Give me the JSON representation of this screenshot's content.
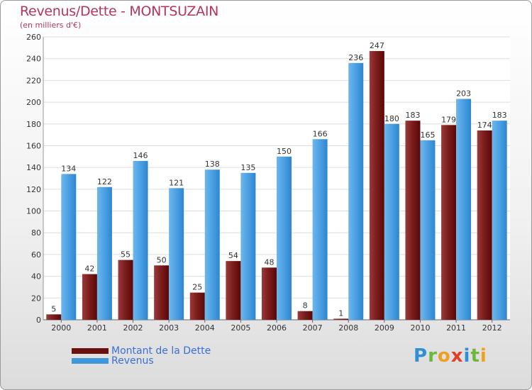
{
  "header": {
    "title": "Revenus/Dette - MONTSUZAIN",
    "subtitle": "(en milliers d'€)"
  },
  "chart_data": {
    "type": "bar",
    "title": "Revenus/Dette - MONTSUZAIN",
    "ylabel": "(en milliers d'€)",
    "xlabel": "",
    "ylim": [
      0,
      260
    ],
    "yticks": [
      0,
      20,
      40,
      60,
      80,
      100,
      120,
      140,
      160,
      180,
      200,
      220,
      240,
      260
    ],
    "grid": true,
    "categories": [
      "2000",
      "2001",
      "2002",
      "2003",
      "2004",
      "2005",
      "2006",
      "2007",
      "2008",
      "2009",
      "2010",
      "2011",
      "2012"
    ],
    "series": [
      {
        "name": "Montant de la Dette",
        "color": "#6b0f0f",
        "values": [
          5,
          42,
          55,
          50,
          25,
          54,
          48,
          8,
          1,
          247,
          183,
          179,
          174
        ]
      },
      {
        "name": "Revenus",
        "color": "#3f97dc",
        "values": [
          134,
          122,
          146,
          121,
          138,
          135,
          150,
          166,
          236,
          180,
          165,
          203,
          183
        ]
      }
    ],
    "legend_position": "bottom-left"
  },
  "legend": {
    "items": [
      {
        "label": "Montant de la Dette",
        "color": "#6b0f0f"
      },
      {
        "label": "Revenus",
        "color": "#3f97dc"
      }
    ]
  },
  "logo": {
    "letters": [
      "P",
      "r",
      "o",
      "x",
      "i",
      "t",
      "i"
    ],
    "colors": [
      "#2f8fd6",
      "#6db83c",
      "#f0a020",
      "#e0402a",
      "#2f8fd6",
      "#6db83c",
      "#f0a020"
    ]
  }
}
